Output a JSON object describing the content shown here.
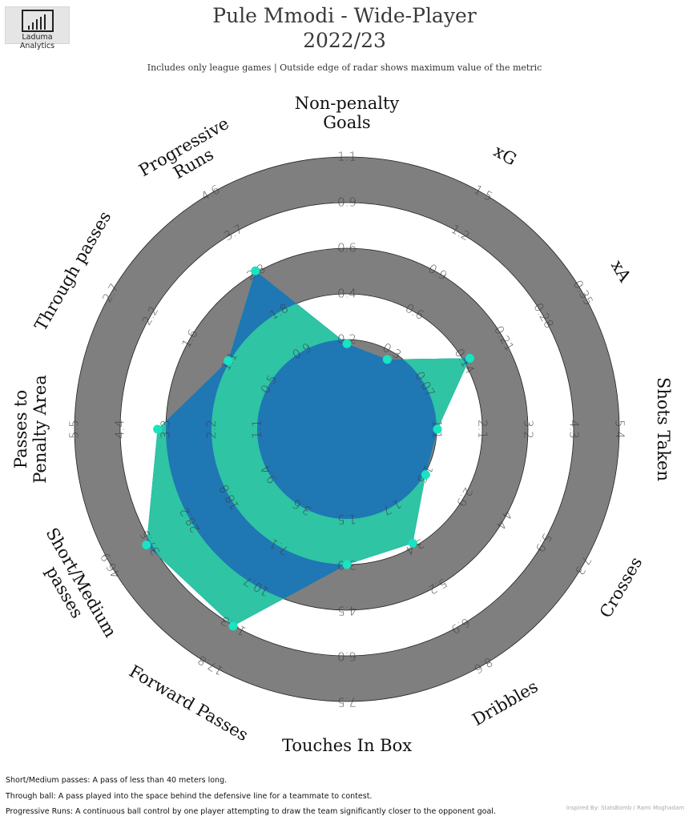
{
  "logo": {
    "text": "Laduma Analytics"
  },
  "header": {
    "title_line1": "Pule Mmodi - Wide-Player",
    "title_line2": "2022/23",
    "subtitle": "Includes only league games | Outside edge of radar shows maximum value of the metric"
  },
  "footer": {
    "note1": "Short/Medium passes: A pass of less than 40 meters long.",
    "note2": "Through ball: A pass played into the space behind the defensive line for a teammate to contest.",
    "note3": "Progressive Runs: A continuous ball control by one player attempting to draw the team significantly closer to the opponent goal.",
    "credit": "Inspired By: StatsBomb / Rami Moghadam"
  },
  "colors": {
    "ring_gray": "#7f7f7f",
    "inner_blue": "#1f77b4",
    "player_fill": "#1f77b4",
    "comparison_fill": "#2ec4a4",
    "point": "#19e3c0"
  },
  "chart_data": {
    "type": "radar",
    "axes": [
      {
        "label": [
          "Non-penalty",
          "Goals"
        ],
        "ticks": [
          "0.2",
          "0.4",
          "0.6",
          "0.9",
          "1.1"
        ]
      },
      {
        "label": [
          "xG"
        ],
        "ticks": [
          "0.3",
          "0.6",
          "0.9",
          "1.2",
          "1.5"
        ]
      },
      {
        "label": [
          "xA"
        ],
        "ticks": [
          "0.07",
          "0.14",
          "0.21",
          "0.28",
          "0.35"
        ]
      },
      {
        "label": [
          "Shots Taken"
        ],
        "ticks": [
          "1.1",
          "2.1",
          "3.2",
          "4.3",
          "5.4"
        ]
      },
      {
        "label": [
          "Crosses"
        ],
        "ticks": [
          "1.5",
          "2.9",
          "4.4",
          "5.9",
          "7.3"
        ]
      },
      {
        "label": [
          "Dribbles"
        ],
        "ticks": [
          "1.7",
          "3.4",
          "5.2",
          "6.9",
          "8.6"
        ]
      },
      {
        "label": [
          "Touches In Box"
        ],
        "ticks": [
          "1.5",
          "3.0",
          "4.5",
          "6.0",
          "7.5"
        ]
      },
      {
        "label": [
          "Forward Passes"
        ],
        "ticks": [
          "3.6",
          "7.1",
          "10.7",
          "14.3",
          "17.8"
        ]
      },
      {
        "label": [
          "Short/Medium",
          "passes"
        ],
        "ticks": [
          "9.4",
          "18.8",
          "28.2",
          "37.5",
          "46.9"
        ]
      },
      {
        "label": [
          "Passes to",
          "Penalty Area"
        ],
        "ticks": [
          "1.1",
          "2.2",
          "3.3",
          "4.4",
          "5.5"
        ]
      },
      {
        "label": [
          "Through passes"
        ],
        "ticks": [
          "0.5",
          "1.1",
          "1.6",
          "2.2",
          "2.7"
        ]
      },
      {
        "label": [
          "Progressive",
          "Runs"
        ],
        "ticks": [
          "0.9",
          "1.8",
          "2.8",
          "3.7",
          "4.6"
        ]
      }
    ],
    "player_values": [
      0.2,
      0.24,
      0.15,
      1.1,
      1.5,
      3.3,
      3.0,
      14.3,
      38.5,
      3.5,
      1.1,
      2.8
    ],
    "max_values": [
      1.1,
      1.5,
      0.35,
      5.4,
      7.3,
      8.6,
      7.5,
      17.8,
      46.9,
      5.5,
      2.7,
      4.6
    ]
  }
}
